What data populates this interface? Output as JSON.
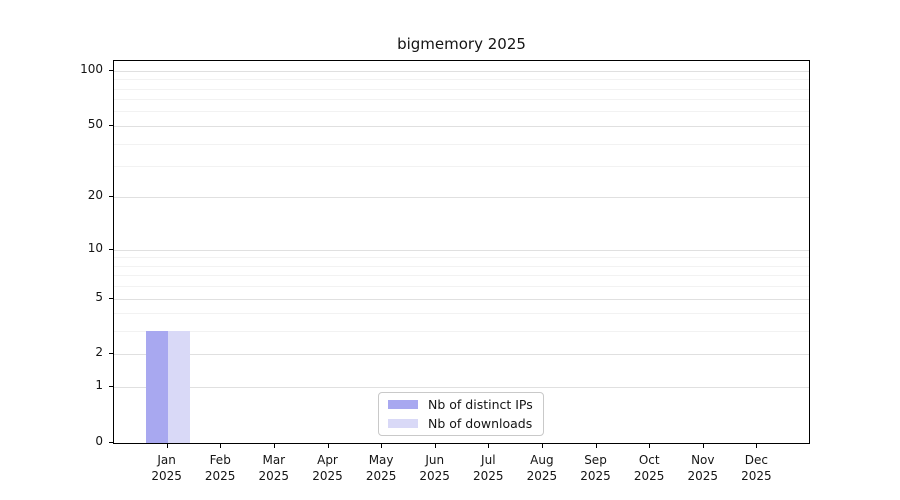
{
  "chart_data": {
    "type": "bar",
    "title": "bigmemory 2025",
    "categories": [
      "Jan",
      "Feb",
      "Mar",
      "Apr",
      "May",
      "Jun",
      "Jul",
      "Aug",
      "Sep",
      "Oct",
      "Nov",
      "Dec"
    ],
    "category_year": "2025",
    "series": [
      {
        "name": "Nb of distinct IPs",
        "color": "#a8a8f0",
        "values": [
          3,
          0,
          0,
          0,
          0,
          0,
          0,
          0,
          0,
          0,
          0,
          0
        ]
      },
      {
        "name": "Nb of downloads",
        "color": "#d9d9f7",
        "values": [
          3,
          0,
          0,
          0,
          0,
          0,
          0,
          0,
          0,
          0,
          0,
          0
        ]
      }
    ],
    "yscale": "log1p",
    "ylim": [
      0,
      113
    ],
    "yticks": [
      0,
      1,
      2,
      5,
      10,
      20,
      50,
      100
    ],
    "minor_gridlines": [
      3,
      4,
      6,
      7,
      8,
      9,
      30,
      40,
      60,
      70,
      80,
      90
    ],
    "grid": true,
    "legend": {
      "position": "lower-center"
    }
  }
}
